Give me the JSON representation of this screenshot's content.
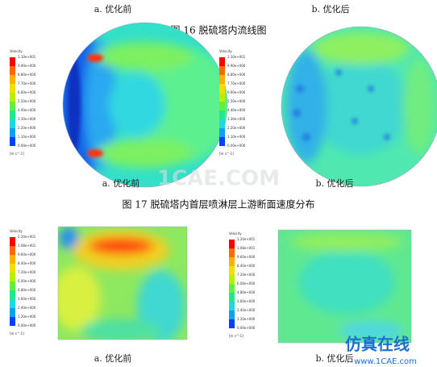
{
  "header": {
    "captions": [
      "a. 优化前",
      "b. 优化后"
    ]
  },
  "figure16": {
    "title": "图 16 脱硫塔内流线图",
    "panels": [
      {
        "caption": "a. 优化前",
        "legend": {
          "title": "Velocity",
          "labels": [
            "1.10e+001",
            "9.90e+000",
            "8.80e+000",
            "7.70e+000",
            "6.60e+000",
            "5.50e+000",
            "4.40e+000",
            "3.30e+000",
            "2.20e+000",
            "1.10e+000",
            "0.00e+000"
          ],
          "unit": "[m s^-1]"
        }
      },
      {
        "caption": "b. 优化后",
        "legend": {
          "title": "Velocity",
          "labels": [
            "1.10e+001",
            "9.90e+000",
            "8.80e+000",
            "7.70e+000",
            "6.60e+000",
            "5.50e+000",
            "4.40e+000",
            "3.30e+000",
            "2.20e+000",
            "1.10e+000",
            "0.00e+000"
          ],
          "unit": "[m s^-1]"
        }
      }
    ]
  },
  "figure17": {
    "title": "图 17 脱硫塔内首层喷淋层上游断面速度分布",
    "panels": [
      {
        "caption": "a. 优化前",
        "legend": {
          "title": "Velocity",
          "labels": [
            "1.20e+001",
            "1.08e+001",
            "9.60e+000",
            "8.40e+000",
            "7.20e+000",
            "6.00e+000",
            "4.80e+000",
            "3.60e+000",
            "2.40e+000",
            "1.20e+000",
            "0.00e+000"
          ],
          "unit": "[m s^-1]"
        }
      },
      {
        "caption": "b. 优化后",
        "legend": {
          "title": "Velocity",
          "labels": [
            "1.20e+001",
            "1.08e+001",
            "9.60e+000",
            "8.40e+000",
            "7.20e+000",
            "6.00e+000",
            "4.80e+000",
            "3.60e+000",
            "2.40e+000",
            "1.20e+000",
            "0.00e+000"
          ],
          "unit": "[m s^-1]"
        }
      }
    ]
  },
  "watermark": {
    "center": "1CAE.COM",
    "brand": "仿真在线",
    "url": "www.1CAE.com"
  }
}
